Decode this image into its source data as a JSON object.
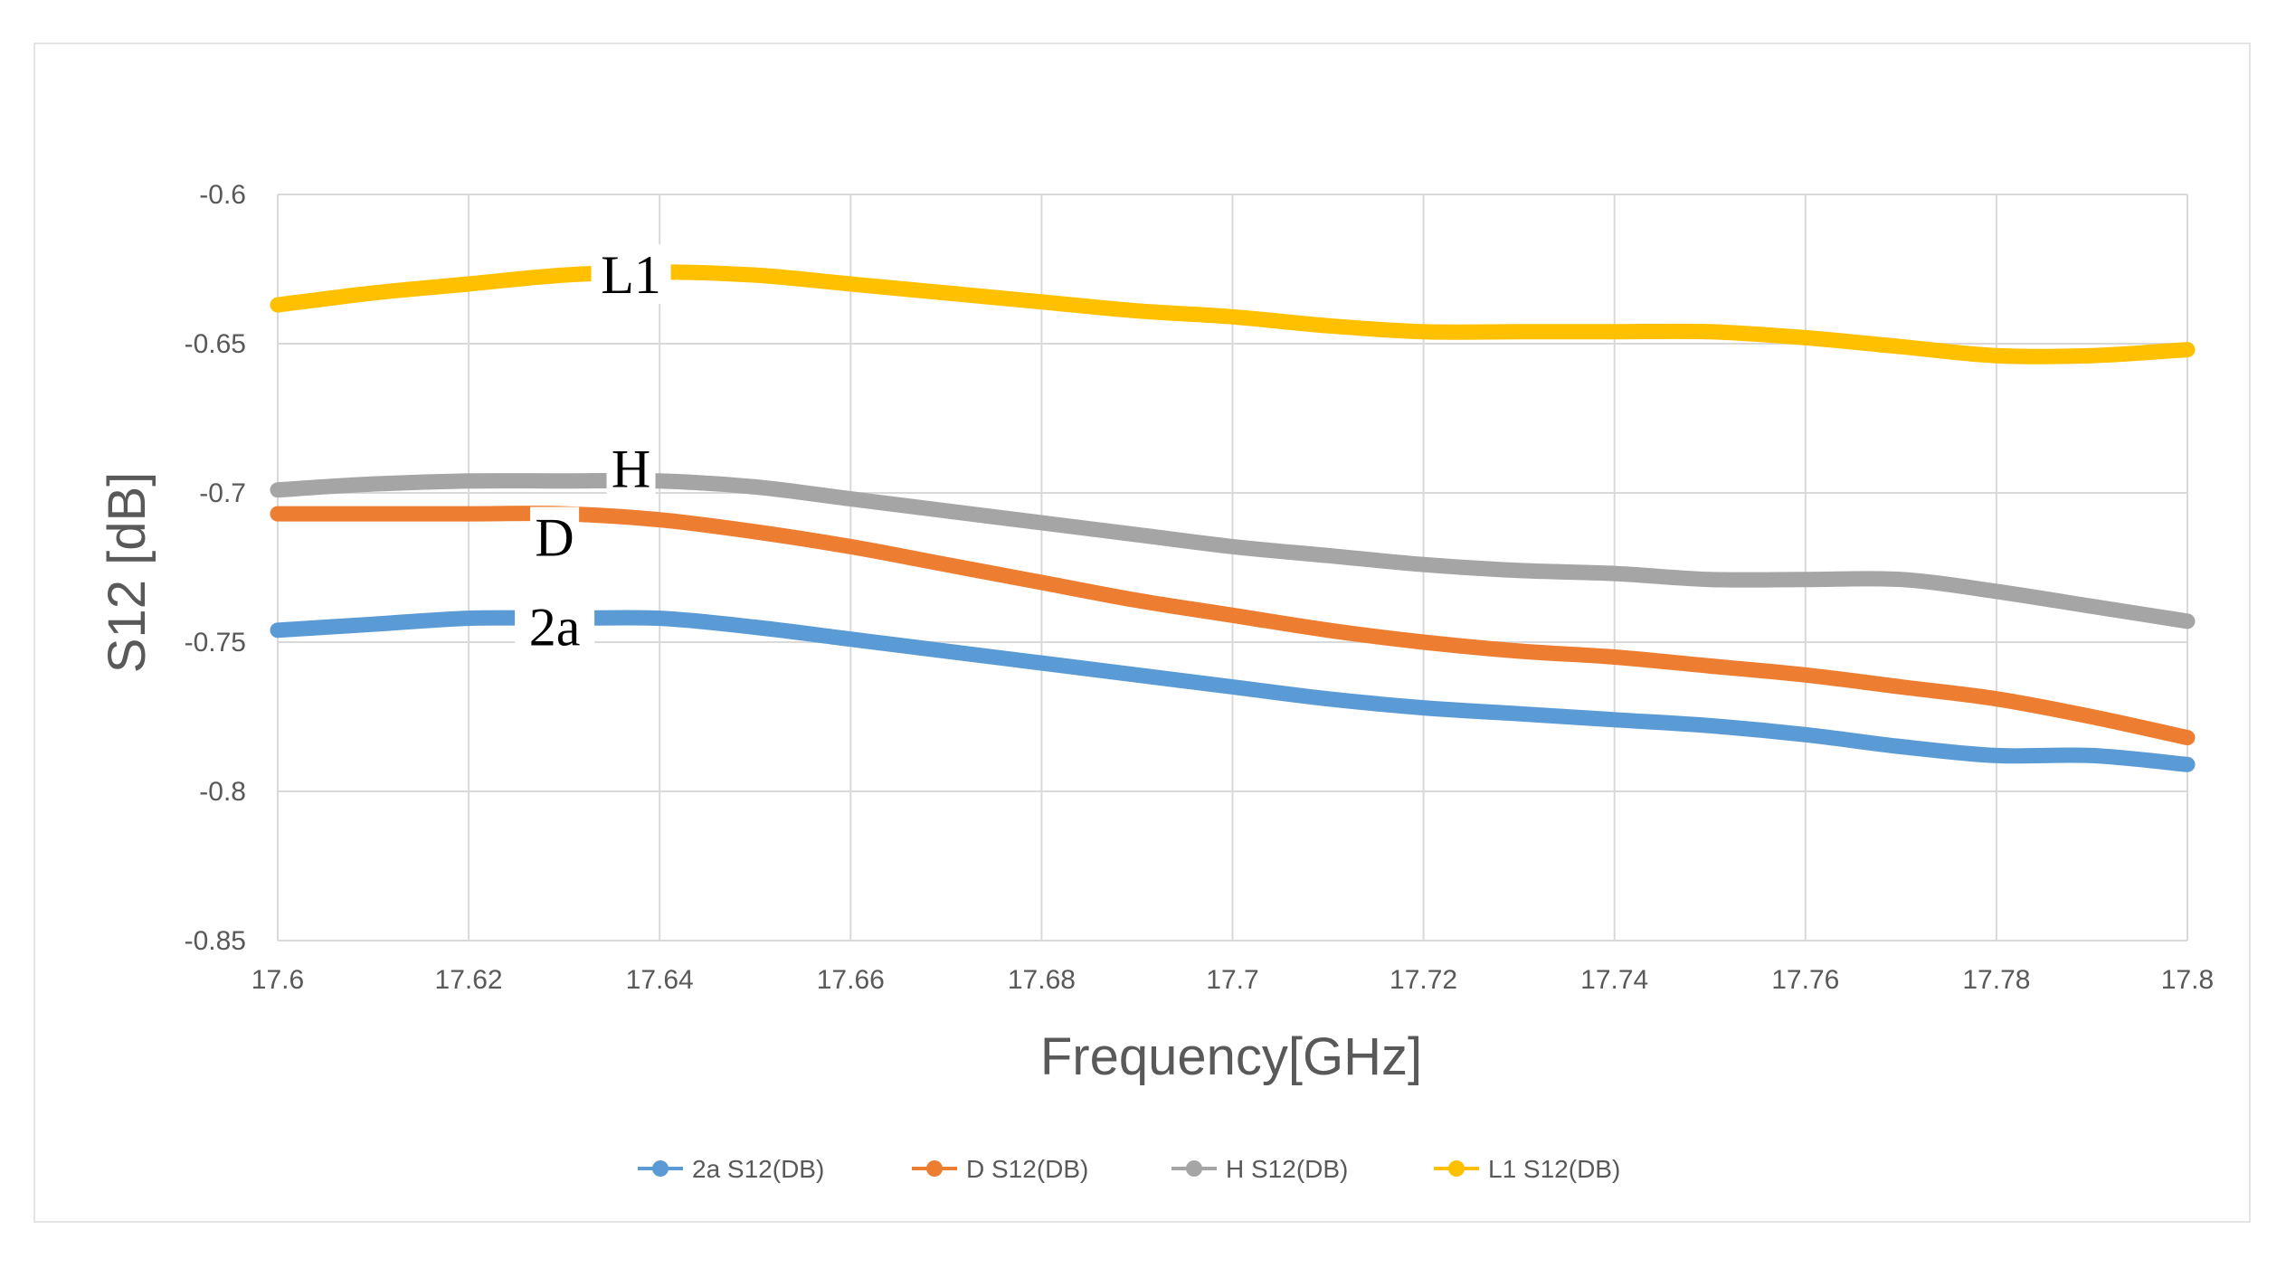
{
  "chart_data": {
    "type": "line",
    "title": "",
    "xlabel": "Frequency[GHz]",
    "ylabel": "S12 [dB]",
    "xlim": [
      17.6,
      17.8
    ],
    "ylim": [
      -0.85,
      -0.6
    ],
    "x_ticks": [
      "17.6",
      "17.62",
      "17.64",
      "17.66",
      "17.68",
      "17.7",
      "17.72",
      "17.74",
      "17.76",
      "17.78",
      "17.8"
    ],
    "y_ticks": [
      "-0.6",
      "-0.65",
      "-0.7",
      "-0.75",
      "-0.8",
      "-0.85"
    ],
    "x": [
      17.6,
      17.61,
      17.62,
      17.63,
      17.64,
      17.65,
      17.66,
      17.67,
      17.68,
      17.69,
      17.7,
      17.71,
      17.72,
      17.73,
      17.74,
      17.75,
      17.76,
      17.77,
      17.78,
      17.79,
      17.8
    ],
    "legend_position": "bottom",
    "series": [
      {
        "name": "2a S12(DB)",
        "color": "#5b9bd5",
        "values": [
          -0.746,
          -0.744,
          -0.742,
          -0.742,
          -0.742,
          -0.745,
          -0.749,
          -0.753,
          -0.757,
          -0.761,
          -0.765,
          -0.769,
          -0.772,
          -0.774,
          -0.776,
          -0.778,
          -0.781,
          -0.785,
          -0.788,
          -0.788,
          -0.791
        ]
      },
      {
        "name": "D S12(DB)",
        "color": "#ed7d31",
        "values": [
          -0.707,
          -0.707,
          -0.707,
          -0.707,
          -0.709,
          -0.713,
          -0.718,
          -0.724,
          -0.73,
          -0.736,
          -0.741,
          -0.746,
          -0.75,
          -0.753,
          -0.755,
          -0.758,
          -0.761,
          -0.765,
          -0.769,
          -0.775,
          -0.782
        ]
      },
      {
        "name": "H S12(DB)",
        "color": "#a5a5a5",
        "values": [
          -0.699,
          -0.697,
          -0.696,
          -0.696,
          -0.696,
          -0.698,
          -0.702,
          -0.706,
          -0.71,
          -0.714,
          -0.718,
          -0.721,
          -0.724,
          -0.726,
          -0.727,
          -0.729,
          -0.729,
          -0.729,
          -0.733,
          -0.738,
          -0.743
        ]
      },
      {
        "name": "L1 S12(DB)",
        "color": "#ffc000",
        "values": [
          -0.637,
          -0.633,
          -0.63,
          -0.627,
          -0.626,
          -0.627,
          -0.63,
          -0.633,
          -0.636,
          -0.639,
          -0.641,
          -0.644,
          -0.646,
          -0.646,
          -0.646,
          -0.646,
          -0.648,
          -0.651,
          -0.654,
          -0.654,
          -0.652
        ]
      }
    ],
    "annotations": [
      {
        "text": "L1",
        "x": 17.637,
        "y": -0.627
      },
      {
        "text": "H",
        "x": 17.637,
        "y": -0.692
      },
      {
        "text": "D",
        "x": 17.629,
        "y": -0.715
      },
      {
        "text": "2a",
        "x": 17.629,
        "y": -0.745
      }
    ]
  }
}
